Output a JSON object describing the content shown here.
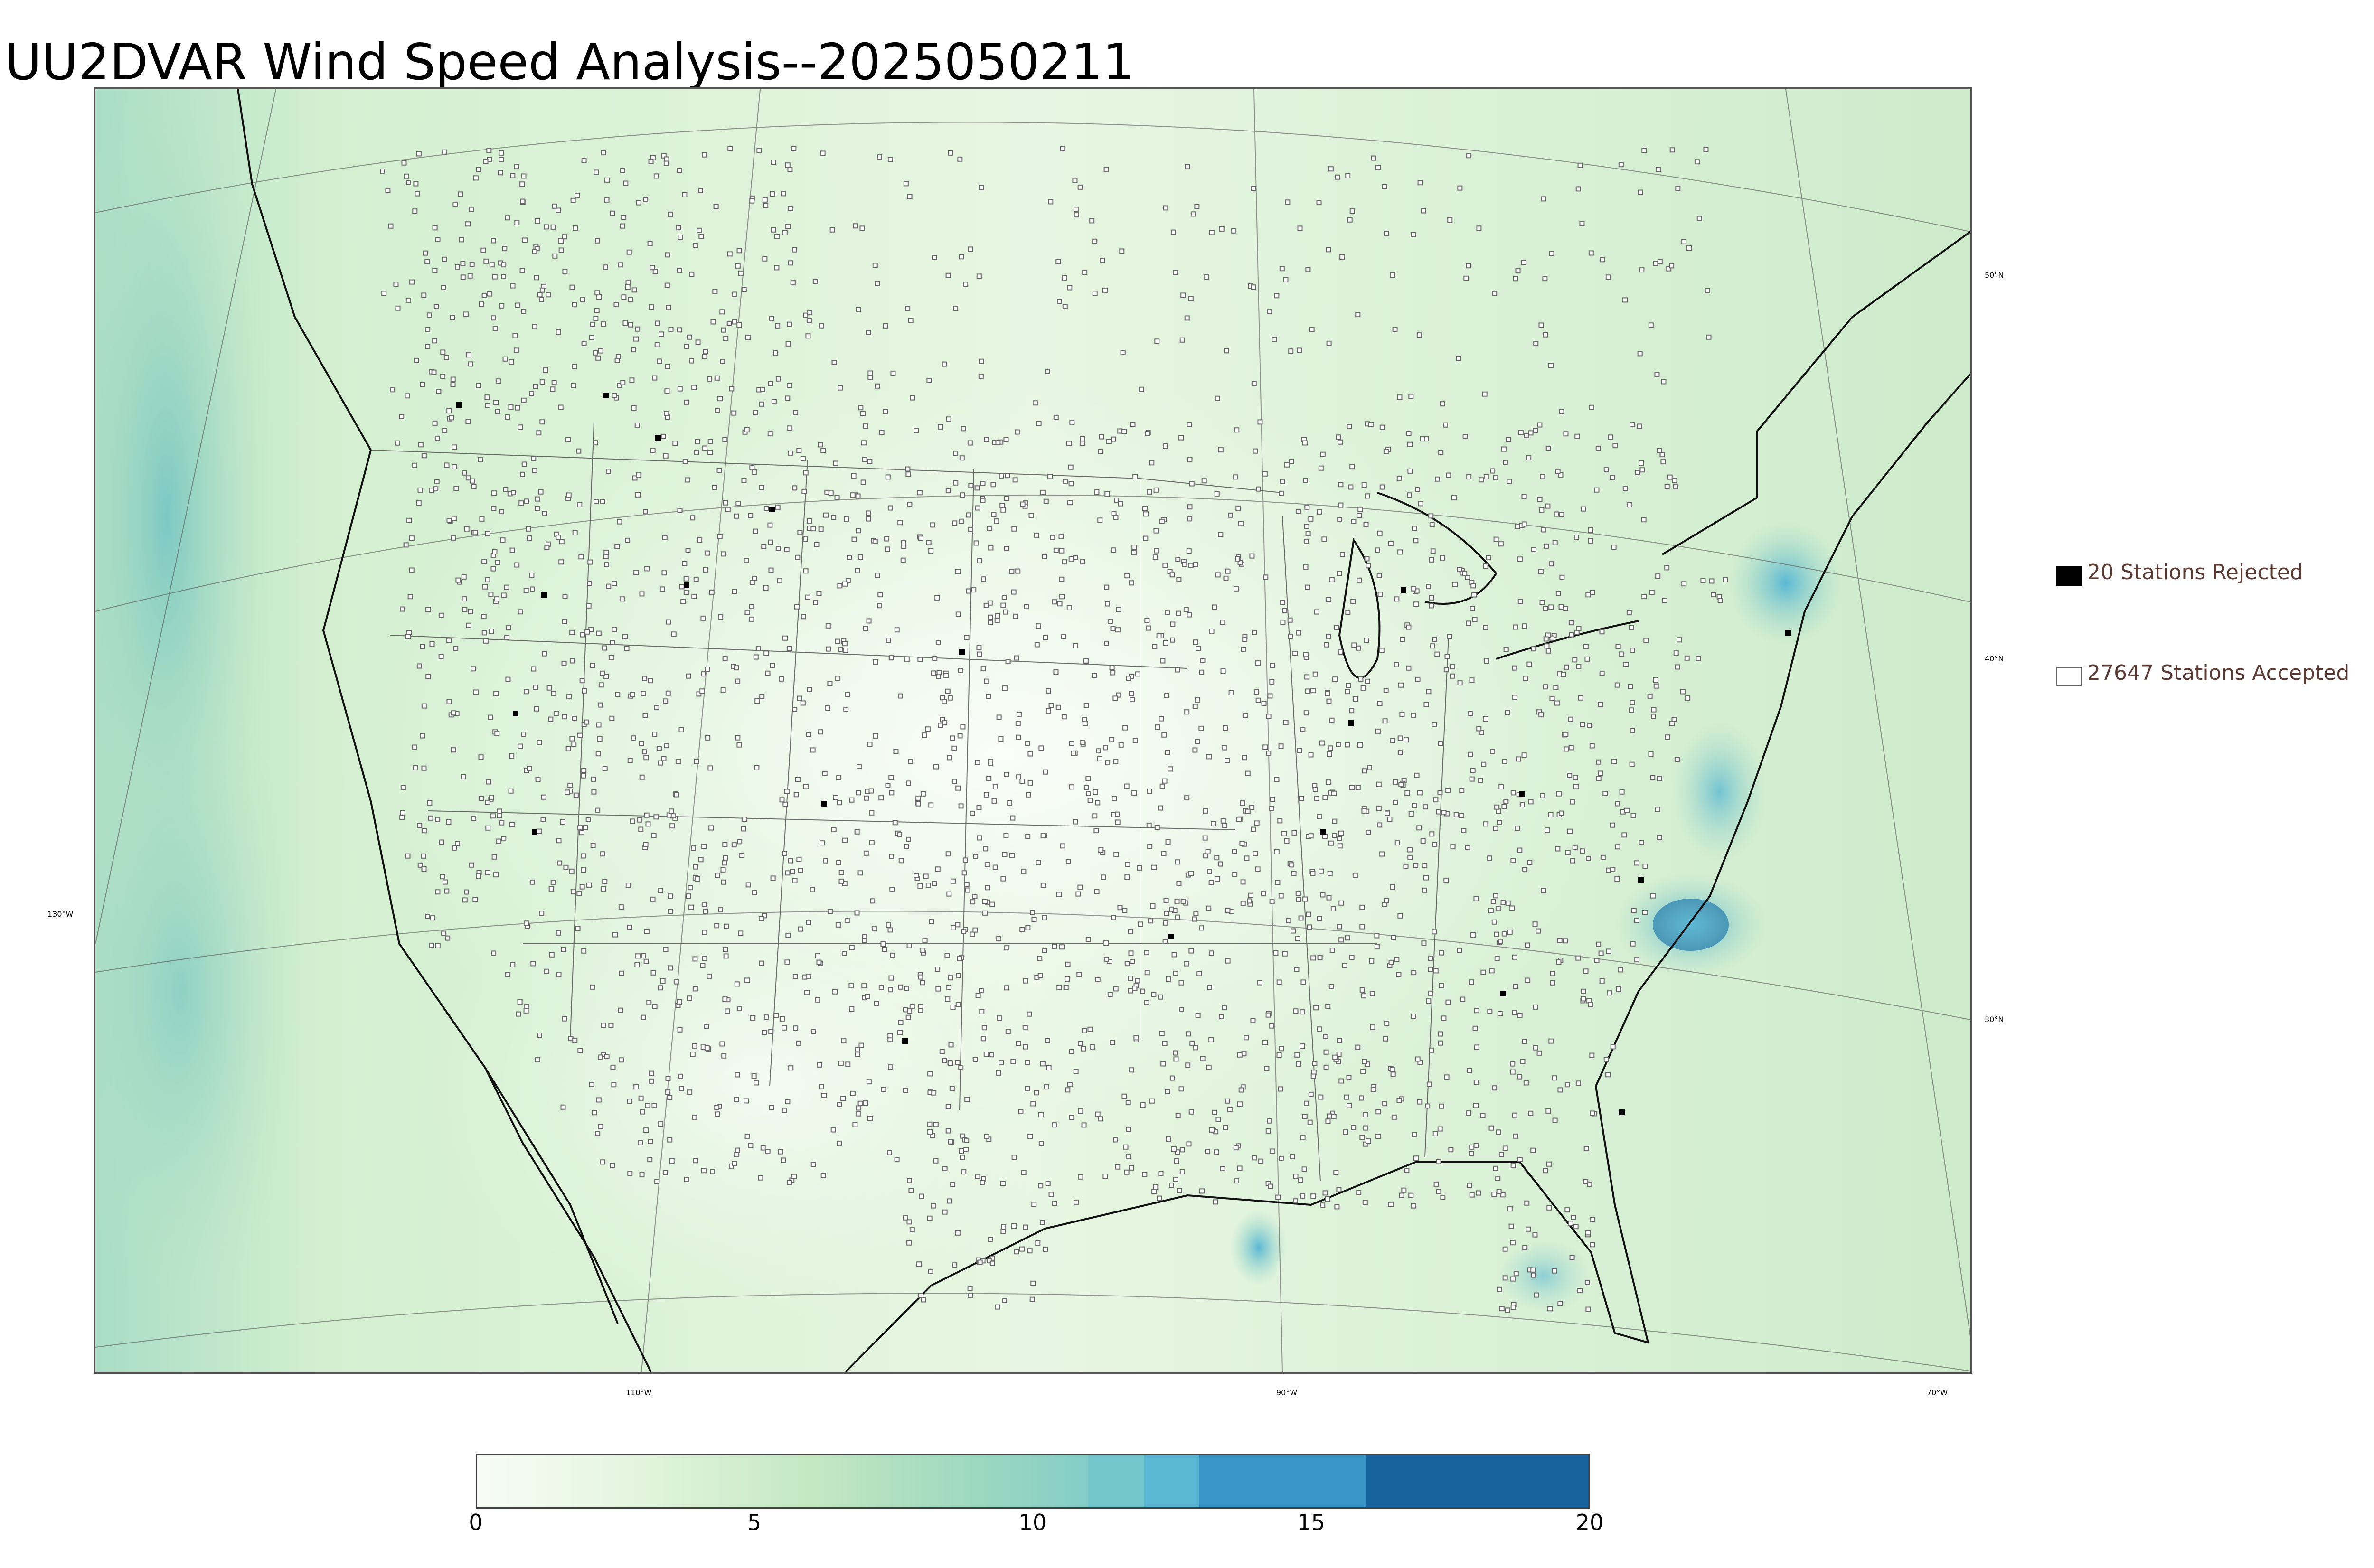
{
  "title": "UU2DVAR Wind Speed Analysis--2025050211",
  "legend": {
    "rejected": "20 Stations Rejected",
    "accepted": "27647 Stations Accepted"
  },
  "graticule": {
    "longitude_labels": [
      "110°W",
      "90°W",
      "70°W"
    ],
    "latitude_labels": [
      "50°N",
      "40°N",
      "30°N"
    ],
    "left_label": "130°W"
  },
  "colorbar": {
    "min": 0,
    "max": 20,
    "ticks": [
      "0",
      "5",
      "10",
      "15",
      "20"
    ],
    "bands": [
      {
        "from": 0,
        "to": 11,
        "color": "gradient"
      },
      {
        "from": 11,
        "to": 12,
        "color": "#72c6cc"
      },
      {
        "from": 12,
        "to": 13,
        "color": "#5bb8d4"
      },
      {
        "from": 13,
        "to": 16,
        "color": "#3a96c6"
      },
      {
        "from": 16,
        "to": 20,
        "color": "#1763a0"
      }
    ]
  },
  "colors": {
    "field_light": "#eef9ec",
    "field_mid": "#bfe6c0",
    "field_high": "#5bb8d4",
    "field_max": "#1763a0",
    "coastline": "#111111",
    "station_accepted": "#666666",
    "station_rejected": "#000000"
  }
}
